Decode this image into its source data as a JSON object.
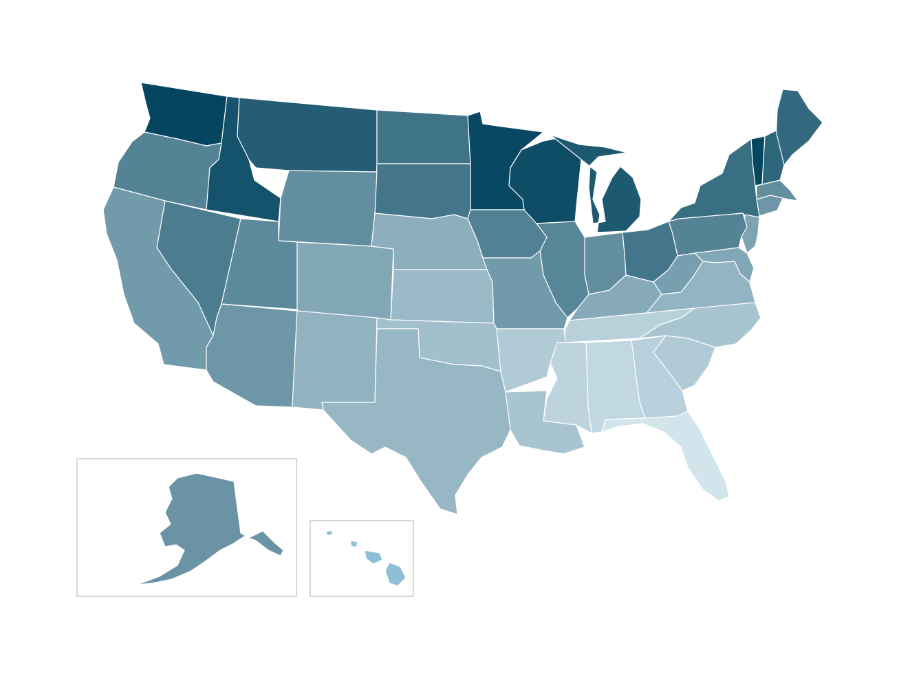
{
  "map": {
    "type": "choropleth",
    "subject": "United States",
    "title": "",
    "legend": null,
    "scale": {
      "low_color": "#d6e8f0",
      "high_color": "#04455f"
    },
    "insets": [
      {
        "name": "alaska",
        "shape_color": "#6a93a5"
      },
      {
        "name": "hawaii",
        "shape_color": "#8fbfd4"
      }
    ],
    "regions": [
      {
        "name": "washington",
        "level": 1.0
      },
      {
        "name": "oregon",
        "level": 0.62
      },
      {
        "name": "idaho",
        "level": 0.92
      },
      {
        "name": "montana",
        "level": 0.85
      },
      {
        "name": "north-dakota",
        "level": 0.72
      },
      {
        "name": "minnesota",
        "level": 0.98
      },
      {
        "name": "wisconsin",
        "level": 0.95
      },
      {
        "name": "michigan",
        "level": 0.88
      },
      {
        "name": "maine",
        "level": 0.78
      },
      {
        "name": "vermont",
        "level": 0.99
      },
      {
        "name": "new-hampshire",
        "level": 0.8
      },
      {
        "name": "new-york",
        "level": 0.75
      },
      {
        "name": "massachusetts",
        "level": 0.55
      },
      {
        "name": "connecticut",
        "level": 0.5
      },
      {
        "name": "new-jersey",
        "level": 0.42
      },
      {
        "name": "pennsylvania",
        "level": 0.62
      },
      {
        "name": "ohio",
        "level": 0.7
      },
      {
        "name": "indiana",
        "level": 0.55
      },
      {
        "name": "illinois",
        "level": 0.6
      },
      {
        "name": "iowa",
        "level": 0.63
      },
      {
        "name": "south-dakota",
        "level": 0.7
      },
      {
        "name": "wyoming",
        "level": 0.55
      },
      {
        "name": "nevada",
        "level": 0.66
      },
      {
        "name": "utah",
        "level": 0.58
      },
      {
        "name": "california",
        "level": 0.48
      },
      {
        "name": "colorado",
        "level": 0.4
      },
      {
        "name": "nebraska",
        "level": 0.35
      },
      {
        "name": "kansas",
        "level": 0.28
      },
      {
        "name": "missouri",
        "level": 0.48
      },
      {
        "name": "kentucky",
        "level": 0.38
      },
      {
        "name": "west-virginia",
        "level": 0.45
      },
      {
        "name": "virginia",
        "level": 0.32
      },
      {
        "name": "maryland",
        "level": 0.4
      },
      {
        "name": "delaware",
        "level": 0.35
      },
      {
        "name": "north-carolina",
        "level": 0.22
      },
      {
        "name": "tennessee",
        "level": 0.15
      },
      {
        "name": "arizona",
        "level": 0.5
      },
      {
        "name": "new-mexico",
        "level": 0.33
      },
      {
        "name": "oklahoma",
        "level": 0.25
      },
      {
        "name": "texas",
        "level": 0.3
      },
      {
        "name": "arkansas",
        "level": 0.18
      },
      {
        "name": "louisiana",
        "level": 0.22
      },
      {
        "name": "mississippi",
        "level": 0.12
      },
      {
        "name": "alabama",
        "level": 0.1
      },
      {
        "name": "georgia",
        "level": 0.14
      },
      {
        "name": "south-carolina",
        "level": 0.18
      },
      {
        "name": "florida",
        "level": 0.02
      }
    ]
  }
}
